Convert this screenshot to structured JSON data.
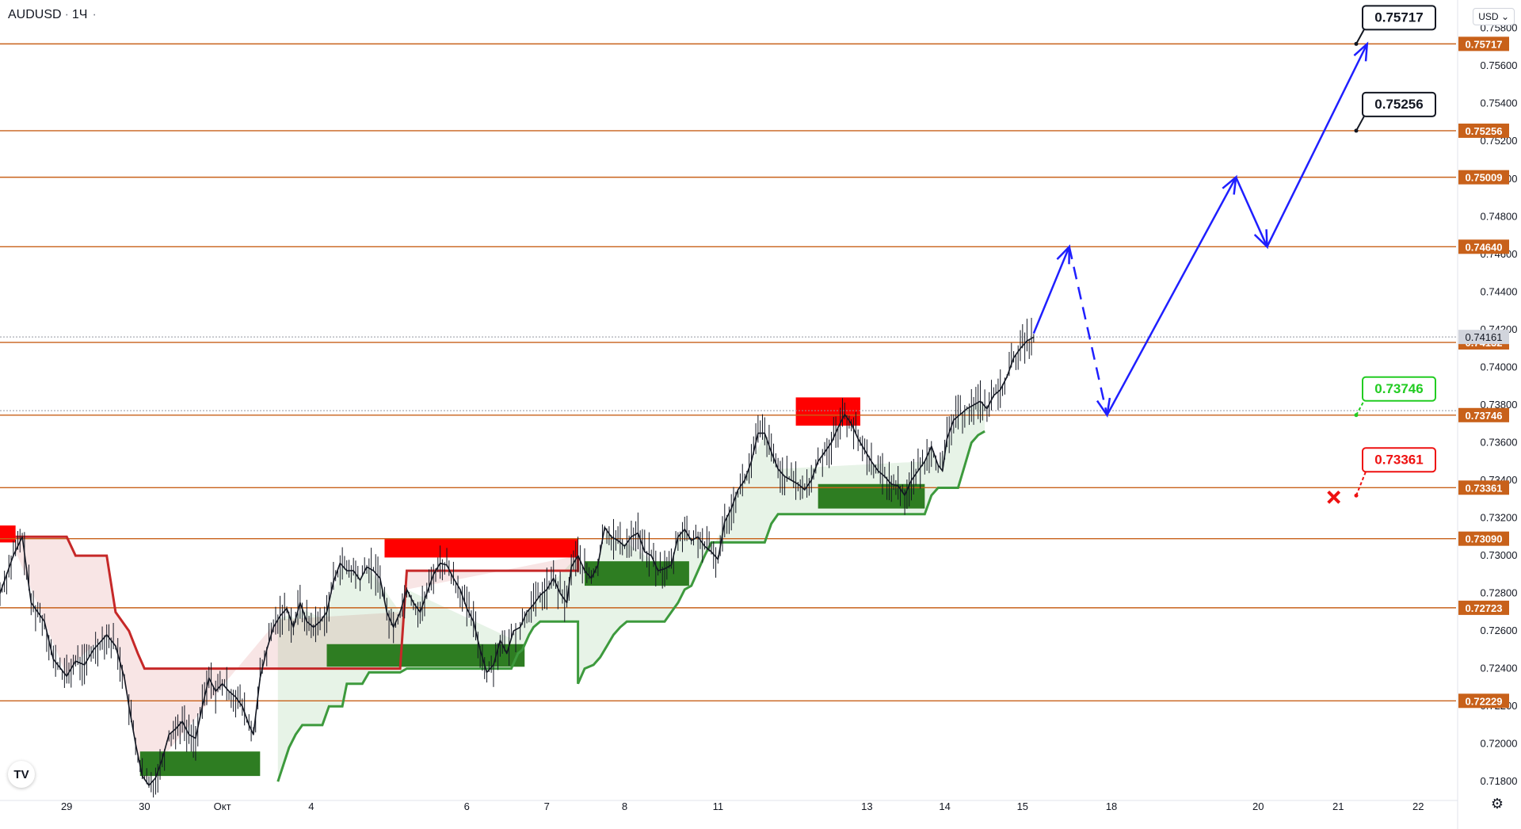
{
  "header": {
    "symbol": "AUDUSD",
    "interval": "1Ч",
    "currency": "USD"
  },
  "logo_text": "TV",
  "colors": {
    "level_line": "#c8611a",
    "projection": "#1f1fff",
    "supply_zone": "#ff0000",
    "demand_zone": "#2e7d22",
    "trail_up": "#3d9a3d",
    "trail_down": "#c62828",
    "target_green": "#22cc22",
    "stop_red": "#ee1111"
  },
  "chart_data": {
    "type": "line",
    "title": "",
    "y_axis": {
      "ticks": [
        0.758,
        0.756,
        0.754,
        0.752,
        0.75,
        0.748,
        0.746,
        0.744,
        0.742,
        0.74,
        0.738,
        0.736,
        0.734,
        0.732,
        0.73,
        0.728,
        0.726,
        0.724,
        0.722,
        0.72,
        0.718
      ],
      "tick_labels": [
        "0.75800",
        "0.75600",
        "0.75400",
        "0.75200",
        "0.75000",
        "0.74800",
        "0.74600",
        "0.74400",
        "0.74200",
        "0.74000",
        "0.73800",
        "0.73600",
        "0.73400",
        "0.73200",
        "0.73000",
        "0.72800",
        "0.72600",
        "0.72400",
        "0.72200",
        "0.72000",
        "0.71800"
      ],
      "range": [
        0.717,
        0.7595
      ]
    },
    "x_axis": {
      "tick_labels": [
        "29",
        "30",
        "Окт",
        "4",
        "6",
        "7",
        "8",
        "11",
        "13",
        "14",
        "15",
        "18",
        "20",
        "21",
        "22"
      ],
      "tick_index": [
        -40,
        -5,
        30,
        70,
        140,
        176,
        211,
        253,
        320,
        355,
        390,
        430,
        496,
        532,
        568
      ],
      "range": [
        -70,
        585
      ]
    },
    "current_price": {
      "value": 0.74161,
      "label": "0.74161"
    },
    "levels": [
      {
        "value": 0.75717,
        "label": "0.75717"
      },
      {
        "value": 0.75256,
        "label": "0.75256"
      },
      {
        "value": 0.75009,
        "label": "0.75009"
      },
      {
        "value": 0.7464,
        "label": "0.74640"
      },
      {
        "value": 0.74132,
        "label": "0.74132"
      },
      {
        "value": 0.73746,
        "label": "0.73746"
      },
      {
        "value": 0.73361,
        "label": "0.73361"
      },
      {
        "value": 0.7309,
        "label": "0.73090"
      },
      {
        "value": 0.72723,
        "label": "0.72723"
      },
      {
        "value": 0.72229,
        "label": "0.72229"
      }
    ],
    "callouts": [
      {
        "label": "0.75717",
        "value": 0.75717,
        "style": "target"
      },
      {
        "label": "0.75256",
        "value": 0.75256,
        "style": "target"
      },
      {
        "label": "0.73746",
        "value": 0.73746,
        "style": "entry"
      },
      {
        "label": "0.73361",
        "value": 0.73361,
        "style": "stop"
      }
    ],
    "price_path": [
      [
        -70,
        0.728
      ],
      [
        -64,
        0.73
      ],
      [
        -60,
        0.731
      ],
      [
        -56,
        0.7275
      ],
      [
        -50,
        0.7265
      ],
      [
        -46,
        0.7245
      ],
      [
        -40,
        0.7236
      ],
      [
        -36,
        0.7244
      ],
      [
        -32,
        0.7242
      ],
      [
        -28,
        0.725
      ],
      [
        -22,
        0.7258
      ],
      [
        -18,
        0.7252
      ],
      [
        -14,
        0.7235
      ],
      [
        -12,
        0.722
      ],
      [
        -9,
        0.72
      ],
      [
        -6,
        0.7183
      ],
      [
        -3,
        0.7178
      ],
      [
        0,
        0.7182
      ],
      [
        3,
        0.7192
      ],
      [
        6,
        0.7205
      ],
      [
        9,
        0.7208
      ],
      [
        12,
        0.7212
      ],
      [
        15,
        0.7205
      ],
      [
        18,
        0.7203
      ],
      [
        21,
        0.722
      ],
      [
        24,
        0.7235
      ],
      [
        27,
        0.7228
      ],
      [
        30,
        0.7232
      ],
      [
        33,
        0.7228
      ],
      [
        36,
        0.7225
      ],
      [
        39,
        0.722
      ],
      [
        42,
        0.721
      ],
      [
        44,
        0.7205
      ],
      [
        47,
        0.7235
      ],
      [
        50,
        0.725
      ],
      [
        53,
        0.7262
      ],
      [
        56,
        0.7268
      ],
      [
        59,
        0.7272
      ],
      [
        62,
        0.7262
      ],
      [
        65,
        0.7275
      ],
      [
        68,
        0.7265
      ],
      [
        71,
        0.7262
      ],
      [
        74,
        0.7265
      ],
      [
        77,
        0.727
      ],
      [
        80,
        0.7286
      ],
      [
        83,
        0.7296
      ],
      [
        86,
        0.7292
      ],
      [
        89,
        0.7292
      ],
      [
        92,
        0.7287
      ],
      [
        95,
        0.7294
      ],
      [
        98,
        0.7292
      ],
      [
        101,
        0.7288
      ],
      [
        104,
        0.727
      ],
      [
        107,
        0.7262
      ],
      [
        110,
        0.727
      ],
      [
        113,
        0.7282
      ],
      [
        116,
        0.7275
      ],
      [
        119,
        0.727
      ],
      [
        122,
        0.728
      ],
      [
        125,
        0.729
      ],
      [
        128,
        0.7296
      ],
      [
        131,
        0.7295
      ],
      [
        134,
        0.7288
      ],
      [
        137,
        0.7282
      ],
      [
        140,
        0.7272
      ],
      [
        143,
        0.7265
      ],
      [
        146,
        0.725
      ],
      [
        149,
        0.7238
      ],
      [
        152,
        0.7242
      ],
      [
        155,
        0.7255
      ],
      [
        158,
        0.7248
      ],
      [
        161,
        0.726
      ],
      [
        164,
        0.7262
      ],
      [
        167,
        0.727
      ],
      [
        170,
        0.7274
      ],
      [
        173,
        0.7279
      ],
      [
        176,
        0.7282
      ],
      [
        179,
        0.7288
      ],
      [
        182,
        0.728
      ],
      [
        185,
        0.7275
      ],
      [
        187,
        0.7294
      ],
      [
        190,
        0.73
      ],
      [
        193,
        0.7292
      ],
      [
        196,
        0.7288
      ],
      [
        199,
        0.7295
      ],
      [
        202,
        0.7315
      ],
      [
        205,
        0.731
      ],
      [
        208,
        0.7308
      ],
      [
        211,
        0.7305
      ],
      [
        214,
        0.731
      ],
      [
        217,
        0.7312
      ],
      [
        220,
        0.7302
      ],
      [
        223,
        0.73
      ],
      [
        226,
        0.7292
      ],
      [
        229,
        0.7293
      ],
      [
        232,
        0.7295
      ],
      [
        235,
        0.731
      ],
      [
        238,
        0.7314
      ],
      [
        241,
        0.7308
      ],
      [
        244,
        0.731
      ],
      [
        247,
        0.7305
      ],
      [
        250,
        0.7302
      ],
      [
        253,
        0.7298
      ],
      [
        256,
        0.7318
      ],
      [
        259,
        0.7325
      ],
      [
        262,
        0.7335
      ],
      [
        265,
        0.734
      ],
      [
        268,
        0.735
      ],
      [
        271,
        0.7365
      ],
      [
        274,
        0.7365
      ],
      [
        277,
        0.7355
      ],
      [
        280,
        0.7346
      ],
      [
        283,
        0.7342
      ],
      [
        286,
        0.734
      ],
      [
        289,
        0.7338
      ],
      [
        292,
        0.7335
      ],
      [
        295,
        0.734
      ],
      [
        298,
        0.735
      ],
      [
        301,
        0.7355
      ],
      [
        304,
        0.736
      ],
      [
        307,
        0.7368
      ],
      [
        310,
        0.7375
      ],
      [
        313,
        0.737
      ],
      [
        316,
        0.7362
      ],
      [
        319,
        0.7356
      ],
      [
        322,
        0.735
      ],
      [
        325,
        0.7345
      ],
      [
        328,
        0.7342
      ],
      [
        331,
        0.7338
      ],
      [
        334,
        0.7337
      ],
      [
        337,
        0.7332
      ],
      [
        340,
        0.734
      ],
      [
        343,
        0.7345
      ],
      [
        346,
        0.735
      ],
      [
        349,
        0.7358
      ],
      [
        352,
        0.7348
      ],
      [
        354,
        0.7345
      ],
      [
        356,
        0.7362
      ],
      [
        359,
        0.7372
      ],
      [
        362,
        0.7375
      ],
      [
        365,
        0.7378
      ],
      [
        368,
        0.738
      ],
      [
        371,
        0.7382
      ],
      [
        374,
        0.7378
      ],
      [
        377,
        0.7385
      ],
      [
        380,
        0.7388
      ],
      [
        383,
        0.7395
      ],
      [
        386,
        0.7405
      ],
      [
        389,
        0.741
      ],
      [
        392,
        0.7414
      ],
      [
        395,
        0.7416
      ]
    ],
    "supply_zones": [
      {
        "x1": -70,
        "x2": -63,
        "y_low": 0.7307,
        "y_high": 0.7316
      },
      {
        "x1": 103,
        "x2": 190,
        "y_low": 0.7299,
        "y_high": 0.7309
      },
      {
        "x1": 288,
        "x2": 317,
        "y_low": 0.7369,
        "y_high": 0.7384
      }
    ],
    "demand_zones": [
      {
        "x1": -7,
        "x2": 47,
        "y_low": 0.7183,
        "y_high": 0.7196
      },
      {
        "x1": 77,
        "x2": 166,
        "y_low": 0.7241,
        "y_high": 0.7253
      },
      {
        "x1": 193,
        "x2": 240,
        "y_low": 0.7284,
        "y_high": 0.7297
      },
      {
        "x1": 298,
        "x2": 346,
        "y_low": 0.7325,
        "y_high": 0.7338
      }
    ],
    "trail_down": [
      [
        -63,
        0.731
      ],
      [
        -40,
        0.731
      ],
      [
        -36,
        0.73
      ],
      [
        -22,
        0.73
      ],
      [
        -18,
        0.727
      ],
      [
        -12,
        0.726
      ],
      [
        -8,
        0.7248
      ],
      [
        -5,
        0.724
      ],
      [
        55,
        0.724
      ],
      [
        110,
        0.724
      ],
      [
        113,
        0.7292
      ],
      [
        190,
        0.7292
      ],
      [
        190,
        0.73
      ]
    ],
    "trail_up": [
      [
        55,
        0.718
      ],
      [
        60,
        0.7198
      ],
      [
        63,
        0.7205
      ],
      [
        66,
        0.721
      ],
      [
        75,
        0.721
      ],
      [
        78,
        0.722
      ],
      [
        84,
        0.722
      ],
      [
        86,
        0.7232
      ],
      [
        93,
        0.7232
      ],
      [
        96,
        0.7238
      ],
      [
        110,
        0.7238
      ],
      [
        113,
        0.724
      ],
      [
        160,
        0.724
      ],
      [
        163,
        0.7248
      ],
      [
        165,
        0.725
      ],
      [
        168,
        0.7258
      ],
      [
        170,
        0.7262
      ],
      [
        173,
        0.7265
      ],
      [
        190,
        0.7265
      ],
      [
        190,
        0.7232
      ],
      [
        193,
        0.724
      ],
      [
        197,
        0.7242
      ],
      [
        200,
        0.7246
      ],
      [
        203,
        0.7252
      ],
      [
        206,
        0.7258
      ],
      [
        209,
        0.7262
      ],
      [
        212,
        0.7265
      ],
      [
        229,
        0.7265
      ],
      [
        232,
        0.727
      ],
      [
        235,
        0.7275
      ],
      [
        238,
        0.7282
      ],
      [
        241,
        0.7284
      ],
      [
        244,
        0.7292
      ],
      [
        247,
        0.73
      ],
      [
        250,
        0.7307
      ],
      [
        274,
        0.7307
      ],
      [
        277,
        0.7317
      ],
      [
        280,
        0.7322
      ],
      [
        346,
        0.7322
      ],
      [
        349,
        0.7332
      ],
      [
        352,
        0.7336
      ],
      [
        361,
        0.7336
      ],
      [
        364,
        0.7348
      ],
      [
        367,
        0.736
      ],
      [
        370,
        0.7364
      ],
      [
        373,
        0.7366
      ]
    ],
    "projection_path": [
      {
        "x": 395,
        "y": 0.7418,
        "style": "solid"
      },
      {
        "x": 411,
        "y": 0.7464,
        "style": "dashed"
      },
      {
        "x": 428,
        "y": 0.73746,
        "style": "solid"
      },
      {
        "x": 486,
        "y": 0.75009,
        "style": "solid"
      },
      {
        "x": 500,
        "y": 0.7464,
        "style": "solid"
      },
      {
        "x": 545,
        "y": 0.75717,
        "style": "solid"
      }
    ],
    "stop_marker": {
      "x": 530,
      "y": 0.7331
    },
    "legend": "none",
    "grid": false
  }
}
